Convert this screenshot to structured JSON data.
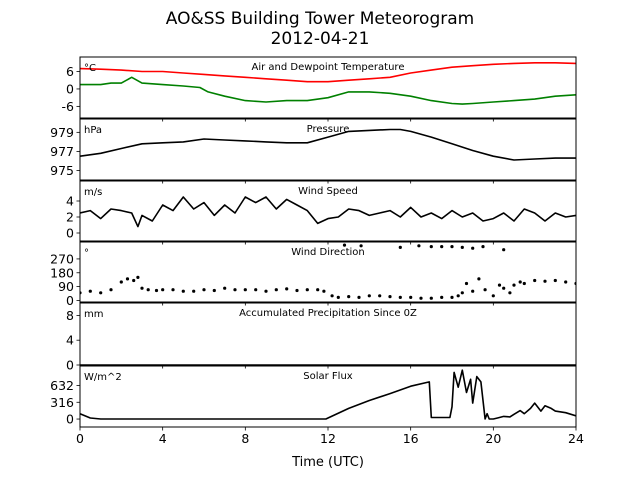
{
  "title": "AO&SS Building Tower Meteorogram",
  "subtitle": "2012-04-21",
  "xlabel": "Time (UTC)",
  "chart_data": {
    "type": "line",
    "x_range": [
      0,
      24
    ],
    "x_ticks": [
      0,
      4,
      8,
      12,
      16,
      20,
      24
    ],
    "panels": [
      {
        "id": "temperature",
        "title": "Air and Dewpoint Temperature",
        "unit": "°C",
        "ylim": [
          -10,
          11
        ],
        "yticks": [
          -6,
          0,
          6
        ],
        "series": [
          {
            "name": "Air Temperature",
            "color": "#ff0000",
            "style": "line",
            "x": [
              0,
              1,
              2,
              3,
              4,
              5,
              6,
              7,
              8,
              9,
              10,
              11,
              12,
              13,
              14,
              15,
              16,
              17,
              18,
              19,
              20,
              21,
              22,
              23,
              24
            ],
            "y": [
              7,
              6.8,
              6.5,
              6,
              6,
              5.5,
              5,
              4.5,
              4,
              3.5,
              3,
              2.5,
              2.5,
              3,
              3.5,
              4,
              5.5,
              6.5,
              7.5,
              8,
              8.5,
              8.8,
              9,
              9,
              8.8
            ]
          },
          {
            "name": "Dewpoint",
            "color": "#008000",
            "style": "line",
            "x": [
              0,
              1,
              1.5,
              2,
              2.5,
              3,
              4,
              5,
              5.8,
              6.2,
              7,
              8,
              9,
              10,
              11,
              12,
              13,
              14,
              15,
              16,
              17,
              18,
              18.5,
              19,
              20,
              21,
              22,
              23,
              24
            ],
            "y": [
              1.5,
              1.5,
              2,
              2,
              4,
              2,
              1.5,
              1,
              0.5,
              -1,
              -2.5,
              -4,
              -4.5,
              -4,
              -4,
              -3,
              -1,
              -1,
              -1.5,
              -2.5,
              -4,
              -5,
              -5.2,
              -5,
              -4.5,
              -4,
              -3.5,
              -2.5,
              -2
            ]
          }
        ]
      },
      {
        "id": "pressure",
        "title": "Pressure",
        "unit": "hPa",
        "ylim": [
          974,
          980.4
        ],
        "yticks": [
          975,
          977,
          979
        ],
        "series": [
          {
            "name": "Pressure",
            "color": "#000000",
            "style": "line",
            "x": [
              0,
              1,
              2,
              3,
              4,
              5,
              6,
              7,
              8,
              9,
              10,
              11,
              12,
              13,
              14,
              15,
              15.5,
              16,
              17,
              18,
              19,
              20,
              21,
              22,
              23,
              24
            ],
            "y": [
              976.5,
              976.8,
              977.3,
              977.8,
              977.9,
              978,
              978.3,
              978.2,
              978.1,
              978,
              977.9,
              977.9,
              978.5,
              979.1,
              979.2,
              979.3,
              979.3,
              979.1,
              978.5,
              977.8,
              977.1,
              976.5,
              976.1,
              976.2,
              976.3,
              976.3
            ]
          }
        ]
      },
      {
        "id": "wind_speed",
        "title": "Wind Speed",
        "unit": "m/s",
        "ylim": [
          -1,
          6.5
        ],
        "yticks": [
          0,
          2,
          4
        ],
        "series": [
          {
            "name": "Wind Speed",
            "color": "#000000",
            "style": "line",
            "x": [
              0,
              0.5,
              1,
              1.5,
              2,
              2.5,
              2.8,
              3,
              3.5,
              4,
              4.5,
              5,
              5.5,
              6,
              6.5,
              7,
              7.5,
              8,
              8.5,
              9,
              9.5,
              10,
              10.5,
              11,
              11.5,
              12,
              12.5,
              13,
              13.5,
              14,
              14.5,
              15,
              15.5,
              16,
              16.5,
              17,
              17.5,
              18,
              18.5,
              19,
              19.5,
              20,
              20.5,
              21,
              21.5,
              22,
              22.5,
              23,
              23.5,
              24
            ],
            "y": [
              2.5,
              2.8,
              1.8,
              3,
              2.8,
              2.5,
              0.8,
              2.2,
              1.5,
              3.5,
              2.8,
              4.5,
              3,
              3.8,
              2.2,
              3.5,
              2.5,
              4.5,
              3.8,
              4.5,
              3,
              4.2,
              3.5,
              2.8,
              1.2,
              1.8,
              2,
              3,
              2.8,
              2.2,
              2.5,
              2.8,
              2,
              3.2,
              2,
              2.5,
              1.8,
              2.8,
              2,
              2.5,
              1.5,
              1.8,
              2.5,
              1.5,
              3,
              2.5,
              1.5,
              2.5,
              2,
              2.2
            ]
          }
        ]
      },
      {
        "id": "wind_direction",
        "title": "Wind Direction",
        "unit": "°",
        "ylim": [
          -10,
          380
        ],
        "yticks": [
          0,
          90,
          180,
          270
        ],
        "series": [
          {
            "name": "Wind Direction",
            "color": "#000000",
            "style": "points",
            "x": [
              0,
              0.5,
              1,
              1.5,
              2,
              2.3,
              2.6,
              2.8,
              3,
              3.3,
              3.7,
              4,
              4.5,
              5,
              5.5,
              6,
              6.5,
              7,
              7.5,
              8,
              8.5,
              9,
              9.5,
              10,
              10.5,
              11,
              11.5,
              11.8,
              12.2,
              12.5,
              13,
              13.5,
              14,
              14.5,
              15,
              15.5,
              16,
              16.5,
              17,
              17.5,
              18,
              18.3,
              18.5,
              18.7,
              19,
              19.3,
              19.6,
              20,
              20.3,
              20.5,
              20.8,
              21,
              21.3,
              21.5,
              22,
              22.5,
              23,
              23.5,
              24,
              12.8,
              13.6,
              15.5,
              16.4,
              17,
              17.5,
              18,
              18.5,
              19,
              19.5,
              20.5
            ],
            "y": [
              50,
              60,
              50,
              70,
              120,
              140,
              130,
              150,
              80,
              70,
              65,
              70,
              70,
              60,
              60,
              70,
              65,
              80,
              70,
              70,
              70,
              60,
              70,
              75,
              65,
              70,
              70,
              60,
              30,
              20,
              25,
              20,
              30,
              30,
              25,
              20,
              20,
              15,
              15,
              20,
              20,
              30,
              50,
              110,
              60,
              140,
              70,
              30,
              100,
              80,
              50,
              100,
              120,
              110,
              130,
              125,
              130,
              120,
              110,
              360,
              355,
              345,
              355,
              350,
              350,
              350,
              345,
              340,
              350,
              330
            ]
          }
        ]
      },
      {
        "id": "precipitation",
        "title": "Accumulated Precipitation Since 0Z",
        "unit": "mm",
        "ylim": [
          0,
          10
        ],
        "yticks": [
          0,
          4,
          8
        ],
        "series": [
          {
            "name": "Accumulated Precipitation",
            "color": "#000000",
            "style": "line",
            "x": [
              0,
              24
            ],
            "y": [
              0,
              0
            ]
          }
        ]
      },
      {
        "id": "solar",
        "title": "Solar Flux",
        "unit": "W/m^2",
        "ylim": [
          -150,
          1000
        ],
        "yticks": [
          0,
          316,
          632
        ],
        "series": [
          {
            "name": "Solar Flux",
            "color": "#000000",
            "style": "line",
            "x": [
              0,
              0.5,
              1,
              11.9,
              12,
              13,
              14,
              15,
              16,
              16.9,
              17,
              17.9,
              18,
              18.1,
              18.3,
              18.5,
              18.7,
              18.9,
              19.0,
              19.2,
              19.4,
              19.6,
              19.7,
              19.8,
              20.0,
              20.2,
              20.5,
              20.8,
              21,
              21.3,
              21.5,
              21.8,
              22,
              22.3,
              22.5,
              22.8,
              23,
              23.5,
              24
            ],
            "y": [
              100,
              20,
              0,
              0,
              20,
              200,
              350,
              480,
              620,
              700,
              30,
              30,
              230,
              880,
              600,
              920,
              500,
              750,
              300,
              800,
              700,
              0,
              100,
              0,
              0,
              20,
              50,
              40,
              90,
              160,
              100,
              200,
              300,
              150,
              250,
              200,
              150,
              120,
              60
            ]
          }
        ]
      }
    ]
  }
}
